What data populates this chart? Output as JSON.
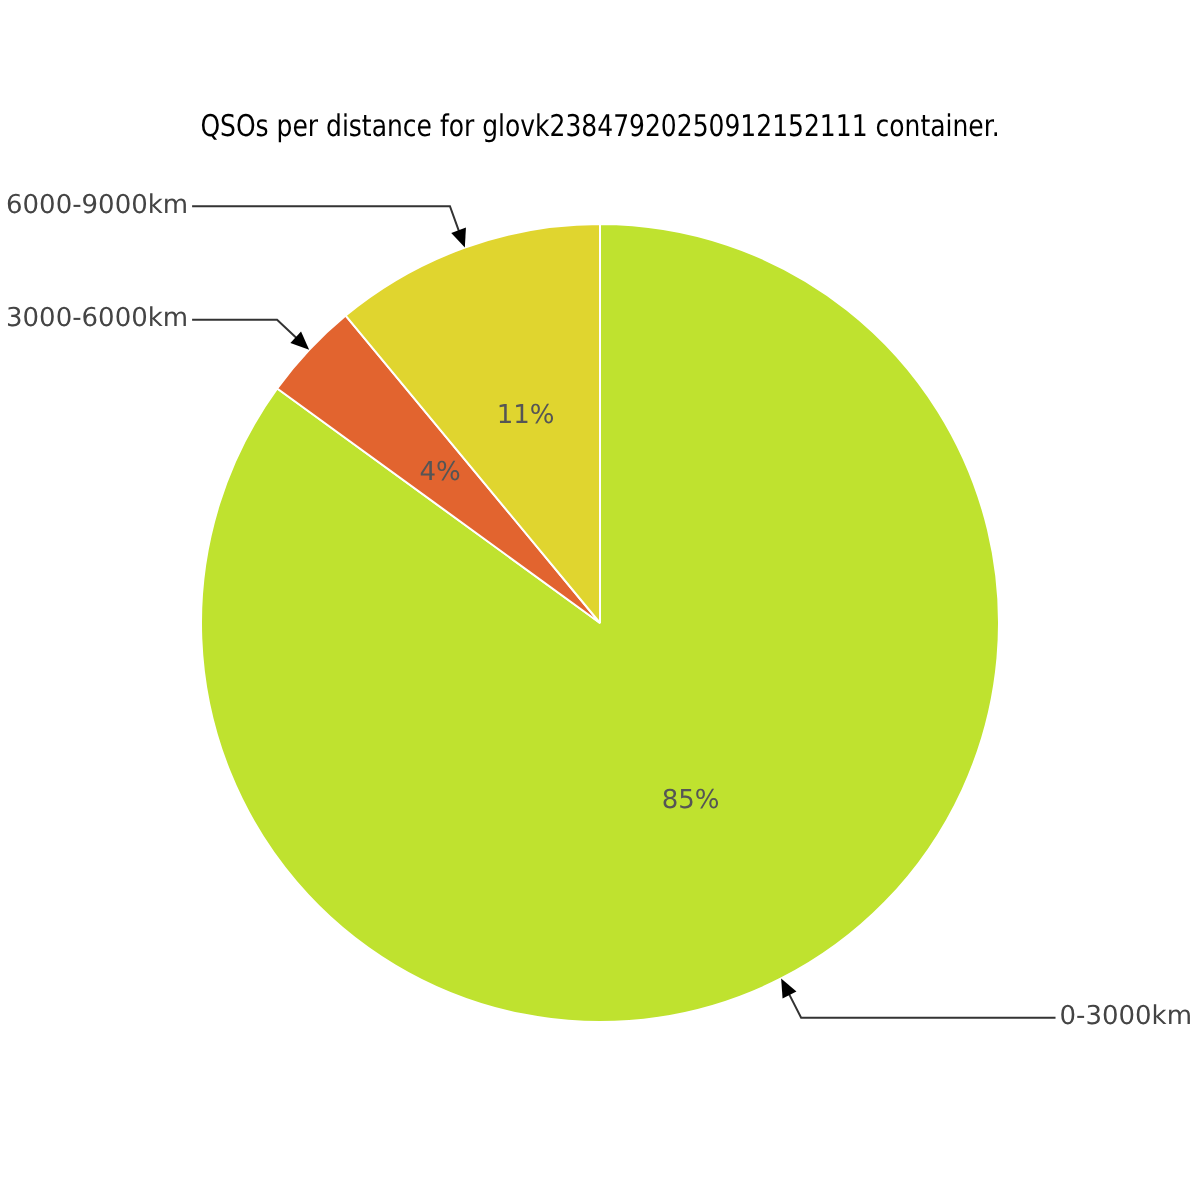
{
  "chart_data": {
    "type": "pie",
    "title": "QSOs per distance for glovk23847920250912152111 container.",
    "categories": [
      "0-3000km",
      "3000-6000km",
      "6000-9000km"
    ],
    "values": [
      85,
      4,
      11
    ],
    "colors": [
      "#bfe22f",
      "#e2642f",
      "#e0d52f"
    ],
    "value_labels": [
      "85%",
      "4%",
      "11%"
    ],
    "legend": false
  }
}
